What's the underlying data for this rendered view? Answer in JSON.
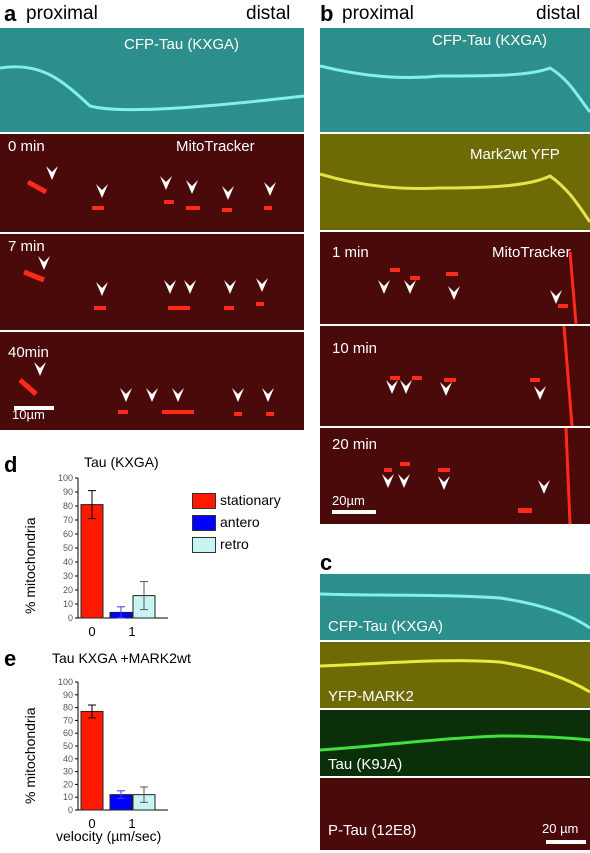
{
  "panel_a": {
    "label": "a",
    "proximal": "proximal",
    "distal": "distal",
    "cfp_label": "CFP-Tau (KXGA)",
    "times": [
      "0 min",
      "7 min",
      "40min"
    ],
    "mito_label": "MitoTracker",
    "scale": "10µm"
  },
  "panel_b": {
    "label": "b",
    "proximal": "proximal",
    "distal": "distal",
    "cfp_label": "CFP-Tau (KXGA)",
    "mark_label": "Mark2wt YFP",
    "times": [
      "1 min",
      "10 min",
      "20 min"
    ],
    "mito_label": "MitoTracker",
    "scale": "20µm"
  },
  "panel_c": {
    "label": "c",
    "labels": [
      "CFP-Tau (KXGA)",
      "YFP-MARK2",
      "Tau (K9JA)",
      "P-Tau (12E8)"
    ],
    "scale": "20 µm"
  },
  "legend": {
    "items": [
      {
        "name": "stationary",
        "color": "#ff1a00"
      },
      {
        "name": "antero",
        "color": "#0000ff"
      },
      {
        "name": "retro",
        "color": "#c9f4f4"
      }
    ]
  },
  "chart_data": [
    {
      "type": "bar",
      "label": "d",
      "title": "Tau (KXGA)",
      "ylabel": "% mitochondria",
      "ylim": [
        0,
        100
      ],
      "yticks": [
        "100",
        "90",
        "80",
        "70",
        "60",
        "50",
        "40",
        "30",
        "20",
        "10",
        "0"
      ],
      "categories": [
        "0",
        "1"
      ],
      "series": [
        {
          "name": "stationary",
          "values": [
            81,
            null
          ],
          "errors": [
            10,
            null
          ]
        },
        {
          "name": "antero",
          "values": [
            null,
            4
          ],
          "errors": [
            null,
            4
          ]
        },
        {
          "name": "retro",
          "values": [
            null,
            16
          ],
          "errors": [
            null,
            10
          ]
        }
      ]
    },
    {
      "type": "bar",
      "label": "e",
      "title": "Tau KXGA +MARK2wt",
      "ylabel": "% mitochondria",
      "xlabel": "velocity (µm/sec)",
      "ylim": [
        0,
        100
      ],
      "yticks": [
        "100",
        "90",
        "80",
        "70",
        "60",
        "50",
        "40",
        "30",
        "20",
        "10",
        "0"
      ],
      "categories": [
        "0",
        "1"
      ],
      "series": [
        {
          "name": "stationary",
          "values": [
            77,
            null
          ],
          "errors": [
            5,
            null
          ]
        },
        {
          "name": "antero",
          "values": [
            null,
            12
          ],
          "errors": [
            null,
            3
          ]
        },
        {
          "name": "retro",
          "values": [
            null,
            12
          ],
          "errors": [
            null,
            6
          ]
        }
      ]
    }
  ]
}
